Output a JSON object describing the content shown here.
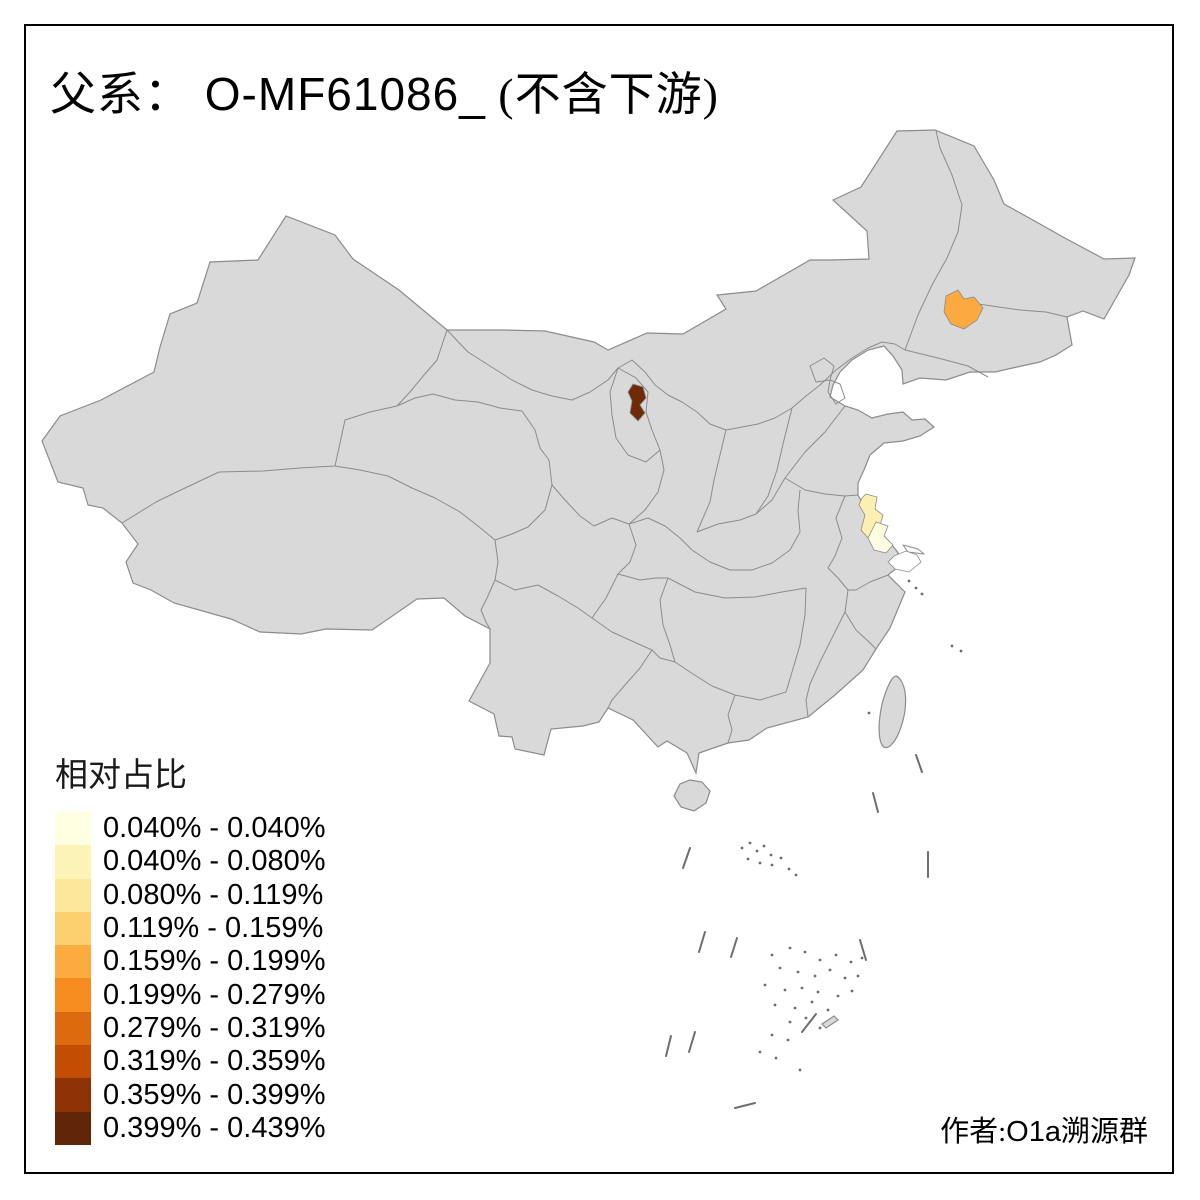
{
  "title": {
    "prefix": "父系：",
    "haplogroup": "O-MF61086_",
    "suffix": " (不含下游)"
  },
  "legend": {
    "title": "相对占比",
    "items": [
      {
        "label": "0.040% - 0.040%",
        "color": "#FFFFE2"
      },
      {
        "label": "0.040% - 0.080%",
        "color": "#FCF4B6"
      },
      {
        "label": "0.080% - 0.119%",
        "color": "#FDE79B"
      },
      {
        "label": "0.119% - 0.159%",
        "color": "#FDD06F"
      },
      {
        "label": "0.159% - 0.199%",
        "color": "#FCAC3F"
      },
      {
        "label": "0.199% - 0.279%",
        "color": "#F68C20"
      },
      {
        "label": "0.279% - 0.319%",
        "color": "#DE6A0F"
      },
      {
        "label": "0.319% - 0.359%",
        "color": "#C24D03"
      },
      {
        "label": "0.359% - 0.399%",
        "color": "#8E3306"
      },
      {
        "label": "0.399% - 0.439%",
        "color": "#5F2506"
      }
    ]
  },
  "attribution": {
    "zh_prefix": "作者:",
    "latin": "O1a",
    "zh_suffix": "溯源群"
  },
  "map": {
    "land_color": "#D9D9D9",
    "border_color": "#8C8C8C",
    "background_color": "#FFFFFF",
    "highlighted_regions": [
      {
        "id": "changchun",
        "area": "Jilin (Changchun/Songyuan area)",
        "color": "#FCA93F",
        "class": "0.159% - 0.199%"
      },
      {
        "id": "yinchuan",
        "area": "Northern Ningxia (Yinchuan area)",
        "color": "#6F2A08",
        "class": "0.399% - 0.439%"
      },
      {
        "id": "taizhou",
        "area": "Central Jiangsu (Taizhou/Yangzhou area)",
        "color": "#FBF0B2",
        "class": "0.040% - 0.080%"
      },
      {
        "id": "nantong",
        "area": "Nantong area",
        "color": "#FEFCE0",
        "class": "0.040% - 0.040%"
      },
      {
        "id": "shanghai",
        "area": "Shanghai area",
        "color": "#FFFFFF",
        "class": ""
      }
    ]
  }
}
